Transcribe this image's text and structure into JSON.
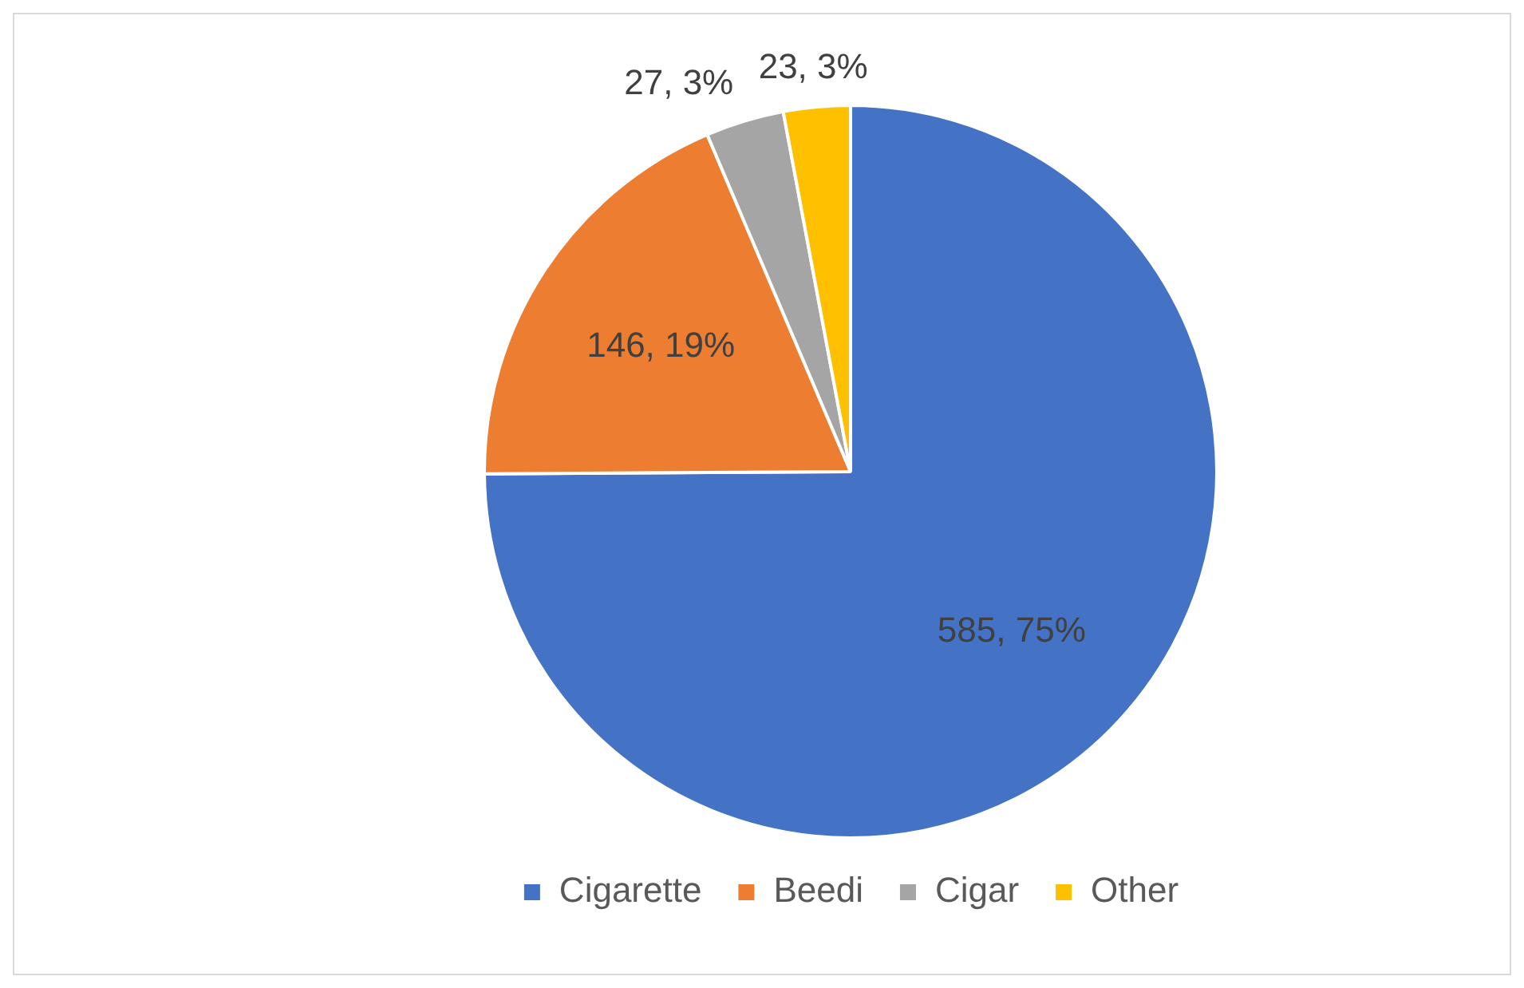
{
  "chart_data": {
    "type": "pie",
    "categories": [
      "Cigarette",
      "Beedi",
      "Cigar",
      "Other"
    ],
    "values": [
      585,
      146,
      27,
      23
    ],
    "colors": [
      "#4472c4",
      "#ed7d31",
      "#a5a5a5",
      "#ffc000"
    ],
    "value_labels": [
      "585, 75%",
      "146, 19%",
      "27, 3%",
      "23, 3%"
    ],
    "legend": "bottom"
  }
}
